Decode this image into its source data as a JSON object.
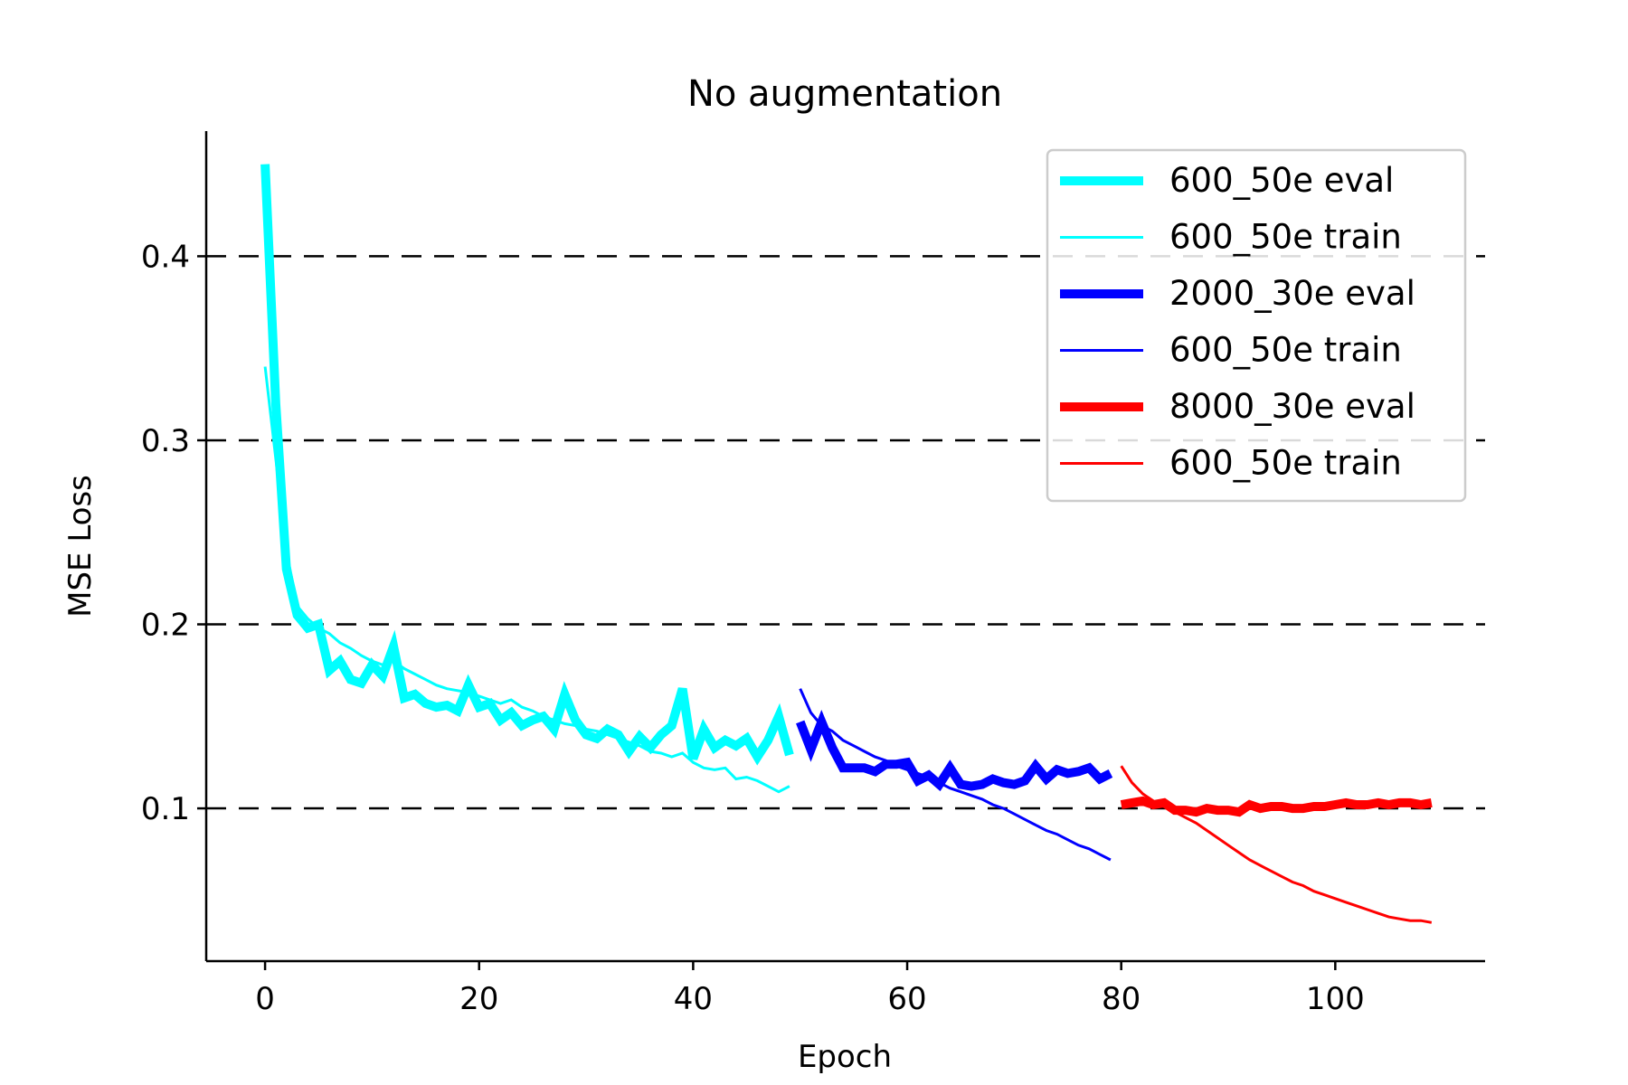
{
  "chart_data": {
    "type": "line",
    "title": "No augmentation",
    "xlabel": "Epoch",
    "ylabel": "MSE Loss",
    "xlim": [
      -5.5,
      114
    ],
    "ylim": [
      0.017,
      0.468
    ],
    "xticks": [
      0,
      20,
      40,
      60,
      80,
      100
    ],
    "yticks": [
      0.1,
      0.2,
      0.3,
      0.4
    ],
    "xtick_labels": [
      "0",
      "20",
      "40",
      "60",
      "80",
      "100"
    ],
    "ytick_labels": [
      "0.1",
      "0.2",
      "0.3",
      "0.4"
    ],
    "grid": "horizontal dashed",
    "legend_position": "top-right",
    "series": [
      {
        "name": "600_50e eval",
        "color": "#00ffff",
        "style": "thick",
        "x0": 0,
        "values": [
          0.45,
          0.32,
          0.23,
          0.205,
          0.198,
          0.2,
          0.175,
          0.18,
          0.17,
          0.168,
          0.178,
          0.172,
          0.188,
          0.16,
          0.162,
          0.157,
          0.155,
          0.156,
          0.153,
          0.167,
          0.155,
          0.157,
          0.148,
          0.152,
          0.145,
          0.148,
          0.15,
          0.143,
          0.162,
          0.148,
          0.14,
          0.138,
          0.143,
          0.14,
          0.131,
          0.139,
          0.133,
          0.14,
          0.145,
          0.165,
          0.127,
          0.143,
          0.133,
          0.137,
          0.134,
          0.138,
          0.128,
          0.137,
          0.15,
          0.129
        ]
      },
      {
        "name": "600_50e train",
        "color": "#00ffff",
        "style": "thin",
        "x0": 0,
        "values": [
          0.34,
          0.29,
          0.24,
          0.21,
          0.203,
          0.198,
          0.195,
          0.19,
          0.187,
          0.183,
          0.18,
          0.178,
          0.18,
          0.176,
          0.173,
          0.17,
          0.167,
          0.165,
          0.164,
          0.163,
          0.161,
          0.159,
          0.157,
          0.159,
          0.155,
          0.153,
          0.15,
          0.148,
          0.146,
          0.145,
          0.143,
          0.142,
          0.14,
          0.138,
          0.136,
          0.134,
          0.131,
          0.13,
          0.128,
          0.13,
          0.125,
          0.122,
          0.121,
          0.122,
          0.116,
          0.117,
          0.115,
          0.112,
          0.109,
          0.112
        ]
      },
      {
        "name": "2000_30e eval",
        "color": "#0000ff",
        "style": "thick",
        "x0": 50,
        "values": [
          0.147,
          0.132,
          0.147,
          0.133,
          0.122,
          0.122,
          0.122,
          0.12,
          0.124,
          0.124,
          0.125,
          0.115,
          0.118,
          0.113,
          0.122,
          0.113,
          0.112,
          0.113,
          0.116,
          0.114,
          0.113,
          0.115,
          0.123,
          0.116,
          0.121,
          0.119,
          0.12,
          0.122,
          0.116,
          0.119
        ]
      },
      {
        "name": "600_50e train",
        "color": "#0000ff",
        "style": "thin",
        "x0": 50,
        "values": [
          0.165,
          0.152,
          0.145,
          0.142,
          0.137,
          0.134,
          0.131,
          0.128,
          0.126,
          0.123,
          0.121,
          0.119,
          0.117,
          0.114,
          0.111,
          0.109,
          0.107,
          0.105,
          0.102,
          0.1,
          0.097,
          0.094,
          0.091,
          0.088,
          0.086,
          0.083,
          0.08,
          0.078,
          0.075,
          0.072
        ]
      },
      {
        "name": "8000_30e eval",
        "color": "#ff0000",
        "style": "thick",
        "x0": 80,
        "values": [
          0.102,
          0.103,
          0.104,
          0.102,
          0.103,
          0.099,
          0.099,
          0.098,
          0.1,
          0.099,
          0.099,
          0.098,
          0.102,
          0.1,
          0.101,
          0.101,
          0.1,
          0.1,
          0.101,
          0.101,
          0.102,
          0.103,
          0.102,
          0.102,
          0.103,
          0.102,
          0.103,
          0.103,
          0.102,
          0.103
        ]
      },
      {
        "name": "600_50e train",
        "color": "#ff0000",
        "style": "thin",
        "x0": 80,
        "values": [
          0.123,
          0.114,
          0.108,
          0.104,
          0.101,
          0.098,
          0.095,
          0.092,
          0.088,
          0.084,
          0.08,
          0.076,
          0.072,
          0.069,
          0.066,
          0.063,
          0.06,
          0.058,
          0.055,
          0.053,
          0.051,
          0.049,
          0.047,
          0.045,
          0.043,
          0.041,
          0.04,
          0.039,
          0.039,
          0.038
        ]
      }
    ]
  }
}
